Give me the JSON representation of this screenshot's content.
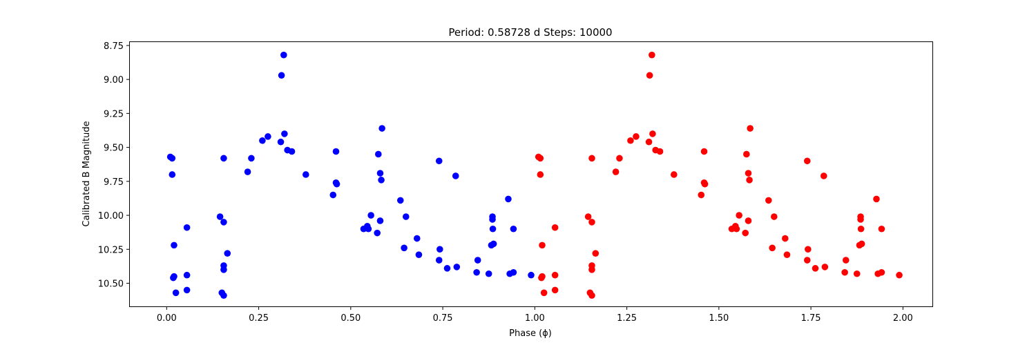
{
  "chart_data": {
    "type": "scatter",
    "title": "Period: 0.58728 d  Steps: 10000",
    "xlabel": "Phase (ϕ)",
    "ylabel": "Calibrated B Magnitude",
    "xlim": [
      -0.1,
      2.08
    ],
    "ylim": [
      10.67,
      8.72
    ],
    "y_inverted": true,
    "grid": false,
    "x_ticks": [
      0.0,
      0.25,
      0.5,
      0.75,
      1.0,
      1.25,
      1.5,
      1.75,
      2.0
    ],
    "x_tick_labels": [
      "0.00",
      "0.25",
      "0.50",
      "0.75",
      "1.00",
      "1.25",
      "1.50",
      "1.75",
      "2.00"
    ],
    "y_ticks": [
      8.75,
      9.0,
      9.25,
      9.5,
      9.75,
      10.0,
      10.25,
      10.5
    ],
    "y_tick_labels": [
      "8.75",
      "9.00",
      "9.25",
      "9.50",
      "9.75",
      "10.00",
      "10.25",
      "10.50"
    ],
    "series": [
      {
        "color": "#0000ff",
        "points": [
          [
            0.01,
            9.57
          ],
          [
            0.015,
            9.58
          ],
          [
            0.015,
            9.7
          ],
          [
            0.02,
            10.22
          ],
          [
            0.02,
            10.45
          ],
          [
            0.018,
            10.46
          ],
          [
            0.025,
            10.57
          ],
          [
            0.055,
            10.09
          ],
          [
            0.055,
            10.44
          ],
          [
            0.055,
            10.55
          ],
          [
            0.145,
            10.01
          ],
          [
            0.155,
            9.58
          ],
          [
            0.155,
            10.05
          ],
          [
            0.155,
            10.37
          ],
          [
            0.155,
            10.4
          ],
          [
            0.15,
            10.57
          ],
          [
            0.155,
            10.59
          ],
          [
            0.165,
            10.28
          ],
          [
            0.22,
            9.68
          ],
          [
            0.23,
            9.58
          ],
          [
            0.26,
            9.45
          ],
          [
            0.275,
            9.42
          ],
          [
            0.31,
            9.46
          ],
          [
            0.312,
            8.97
          ],
          [
            0.318,
            8.82
          ],
          [
            0.32,
            9.4
          ],
          [
            0.328,
            9.52
          ],
          [
            0.34,
            9.53
          ],
          [
            0.378,
            9.7
          ],
          [
            0.452,
            9.85
          ],
          [
            0.46,
            9.53
          ],
          [
            0.46,
            9.76
          ],
          [
            0.462,
            9.77
          ],
          [
            0.535,
            10.1
          ],
          [
            0.545,
            10.08
          ],
          [
            0.548,
            10.1
          ],
          [
            0.555,
            10.0
          ],
          [
            0.572,
            10.13
          ],
          [
            0.575,
            9.55
          ],
          [
            0.58,
            9.69
          ],
          [
            0.58,
            10.04
          ],
          [
            0.583,
            9.74
          ],
          [
            0.585,
            9.36
          ],
          [
            0.635,
            9.89
          ],
          [
            0.645,
            10.24
          ],
          [
            0.65,
            10.01
          ],
          [
            0.68,
            10.17
          ],
          [
            0.685,
            10.29
          ],
          [
            0.74,
            10.33
          ],
          [
            0.74,
            9.6
          ],
          [
            0.742,
            10.25
          ],
          [
            0.762,
            10.39
          ],
          [
            0.785,
            9.71
          ],
          [
            0.788,
            10.38
          ],
          [
            0.842,
            10.42
          ],
          [
            0.845,
            10.33
          ],
          [
            0.875,
            10.43
          ],
          [
            0.882,
            10.22
          ],
          [
            0.885,
            10.01
          ],
          [
            0.885,
            10.03
          ],
          [
            0.886,
            10.1
          ],
          [
            0.888,
            10.21
          ],
          [
            0.928,
            9.88
          ],
          [
            0.932,
            10.43
          ],
          [
            0.942,
            10.42
          ],
          [
            0.942,
            10.1
          ],
          [
            0.99,
            10.44
          ]
        ]
      },
      {
        "color": "#ff0000",
        "points": [
          [
            1.01,
            9.57
          ],
          [
            1.015,
            9.58
          ],
          [
            1.015,
            9.7
          ],
          [
            1.02,
            10.22
          ],
          [
            1.02,
            10.45
          ],
          [
            1.018,
            10.46
          ],
          [
            1.025,
            10.57
          ],
          [
            1.055,
            10.09
          ],
          [
            1.055,
            10.44
          ],
          [
            1.055,
            10.55
          ],
          [
            1.145,
            10.01
          ],
          [
            1.155,
            9.58
          ],
          [
            1.155,
            10.05
          ],
          [
            1.155,
            10.37
          ],
          [
            1.155,
            10.4
          ],
          [
            1.15,
            10.57
          ],
          [
            1.155,
            10.59
          ],
          [
            1.165,
            10.28
          ],
          [
            1.22,
            9.68
          ],
          [
            1.23,
            9.58
          ],
          [
            1.26,
            9.45
          ],
          [
            1.275,
            9.42
          ],
          [
            1.31,
            9.46
          ],
          [
            1.312,
            8.97
          ],
          [
            1.318,
            8.82
          ],
          [
            1.32,
            9.4
          ],
          [
            1.328,
            9.52
          ],
          [
            1.34,
            9.53
          ],
          [
            1.378,
            9.7
          ],
          [
            1.452,
            9.85
          ],
          [
            1.46,
            9.53
          ],
          [
            1.46,
            9.76
          ],
          [
            1.462,
            9.77
          ],
          [
            1.535,
            10.1
          ],
          [
            1.545,
            10.08
          ],
          [
            1.548,
            10.1
          ],
          [
            1.555,
            10.0
          ],
          [
            1.572,
            10.13
          ],
          [
            1.575,
            9.55
          ],
          [
            1.58,
            9.69
          ],
          [
            1.58,
            10.04
          ],
          [
            1.583,
            9.74
          ],
          [
            1.585,
            9.36
          ],
          [
            1.635,
            9.89
          ],
          [
            1.645,
            10.24
          ],
          [
            1.65,
            10.01
          ],
          [
            1.68,
            10.17
          ],
          [
            1.685,
            10.29
          ],
          [
            1.74,
            10.33
          ],
          [
            1.74,
            9.6
          ],
          [
            1.742,
            10.25
          ],
          [
            1.762,
            10.39
          ],
          [
            1.785,
            9.71
          ],
          [
            1.788,
            10.38
          ],
          [
            1.842,
            10.42
          ],
          [
            1.845,
            10.33
          ],
          [
            1.875,
            10.43
          ],
          [
            1.882,
            10.22
          ],
          [
            1.885,
            10.01
          ],
          [
            1.885,
            10.03
          ],
          [
            1.886,
            10.1
          ],
          [
            1.888,
            10.21
          ],
          [
            1.928,
            9.88
          ],
          [
            1.932,
            10.43
          ],
          [
            1.942,
            10.42
          ],
          [
            1.942,
            10.1
          ],
          [
            1.99,
            10.44
          ]
        ]
      }
    ]
  }
}
